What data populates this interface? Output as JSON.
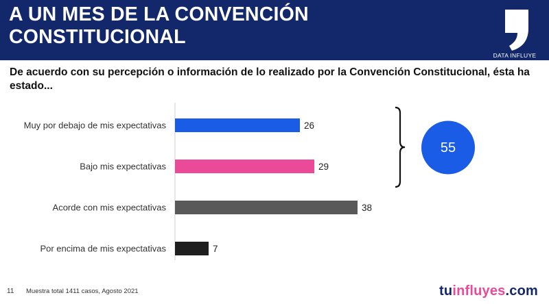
{
  "header": {
    "title_line1": "A UN MES DE LA CONVENCIÓN",
    "title_line2": "CONSTITUCIONAL",
    "brand_label": "DATA INFLUYE"
  },
  "question": "De acuerdo con su percepción o información de lo realizado por la Convención Constitucional, ésta ha estado...",
  "chart_data": {
    "type": "bar",
    "orientation": "horizontal",
    "categories": [
      "Muy por debajo de mis expectativas",
      "Bajo mis expectativas",
      "Acorde con mis expectativas",
      "Por encima de mis expectativas"
    ],
    "values": [
      26,
      29,
      38,
      7
    ],
    "colors": [
      "#1a5ce6",
      "#ea4a98",
      "#595959",
      "#1e1e1e"
    ],
    "xlim": [
      0,
      40
    ],
    "grouped_total": {
      "categories_index": [
        0,
        1
      ],
      "value": "55",
      "color": "#1a5ce6"
    }
  },
  "footer": {
    "page": "11",
    "note": "Muestra total 1411 casos,  Agosto 2021",
    "brand_prefix": "tu",
    "brand_middle": "influyes",
    "brand_suffix": ".com",
    "brand_colors": {
      "prefix": "#13286b",
      "middle": "#ea4a98",
      "suffix": "#13286b"
    }
  }
}
